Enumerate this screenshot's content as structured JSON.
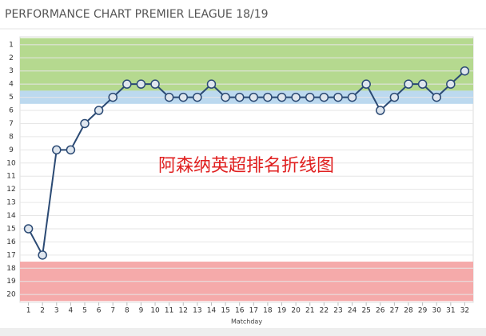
{
  "chart_data": {
    "type": "line",
    "title": "PERFORMANCE CHART PREMIER LEAGUE 18/19",
    "annotation": "阿森纳英超排名折线图",
    "x_label": "Matchday",
    "x": [
      1,
      2,
      3,
      4,
      5,
      6,
      7,
      8,
      9,
      10,
      11,
      12,
      13,
      14,
      15,
      16,
      17,
      18,
      19,
      20,
      21,
      22,
      23,
      24,
      25,
      26,
      27,
      28,
      29,
      30,
      31,
      32
    ],
    "series": [
      {
        "color": "#2b4a74",
        "values": [
          15,
          17,
          9,
          9,
          7,
          6,
          5,
          4,
          4,
          4,
          5,
          5,
          5,
          4,
          5,
          5,
          5,
          5,
          5,
          5,
          5,
          5,
          5,
          5,
          4,
          6,
          5,
          4,
          4,
          5,
          4,
          3
        ]
      }
    ],
    "xlim": [
      0.4,
      32.6
    ],
    "xticks": [
      1,
      2,
      3,
      4,
      5,
      6,
      7,
      8,
      9,
      10,
      11,
      12,
      13,
      14,
      15,
      16,
      17,
      18,
      19,
      20,
      21,
      22,
      23,
      24,
      25,
      26,
      27,
      28,
      29,
      30,
      31,
      32
    ],
    "ylim": [
      0.4,
      20.6
    ],
    "yticks": [
      1,
      2,
      3,
      4,
      5,
      6,
      7,
      8,
      9,
      10,
      11,
      12,
      13,
      14,
      15,
      16,
      17,
      18,
      19,
      20
    ],
    "y_inverted": true,
    "grid": true,
    "bands": [
      {
        "from": 1,
        "to": 4,
        "color": "#b5d98f"
      },
      {
        "from": 5,
        "to": 5,
        "color": "#bcd9ef"
      },
      {
        "from": 18,
        "to": 20,
        "color": "#f5aaaa"
      }
    ]
  }
}
